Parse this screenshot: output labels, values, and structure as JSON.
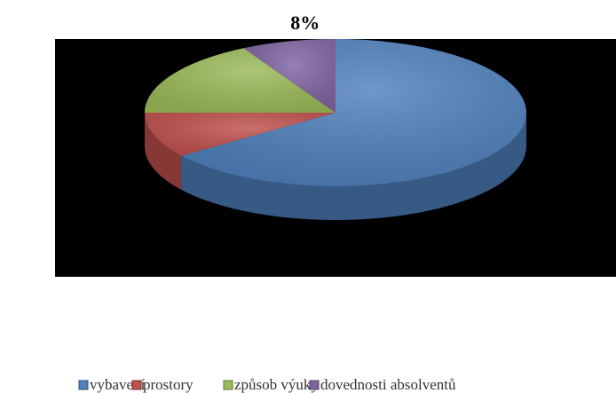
{
  "chart_data": {
    "type": "pie3d",
    "categories": [
      "vybavení",
      "prostory",
      "způsob výuky",
      "dovednosti absolventů"
    ],
    "values": [
      65,
      10,
      17,
      8
    ],
    "value_labels": [
      null,
      null,
      null,
      "8%"
    ],
    "colors": [
      "#4f81bd",
      "#c0504d",
      "#9bbb59",
      "#8064a2"
    ],
    "legend": "bottom"
  }
}
